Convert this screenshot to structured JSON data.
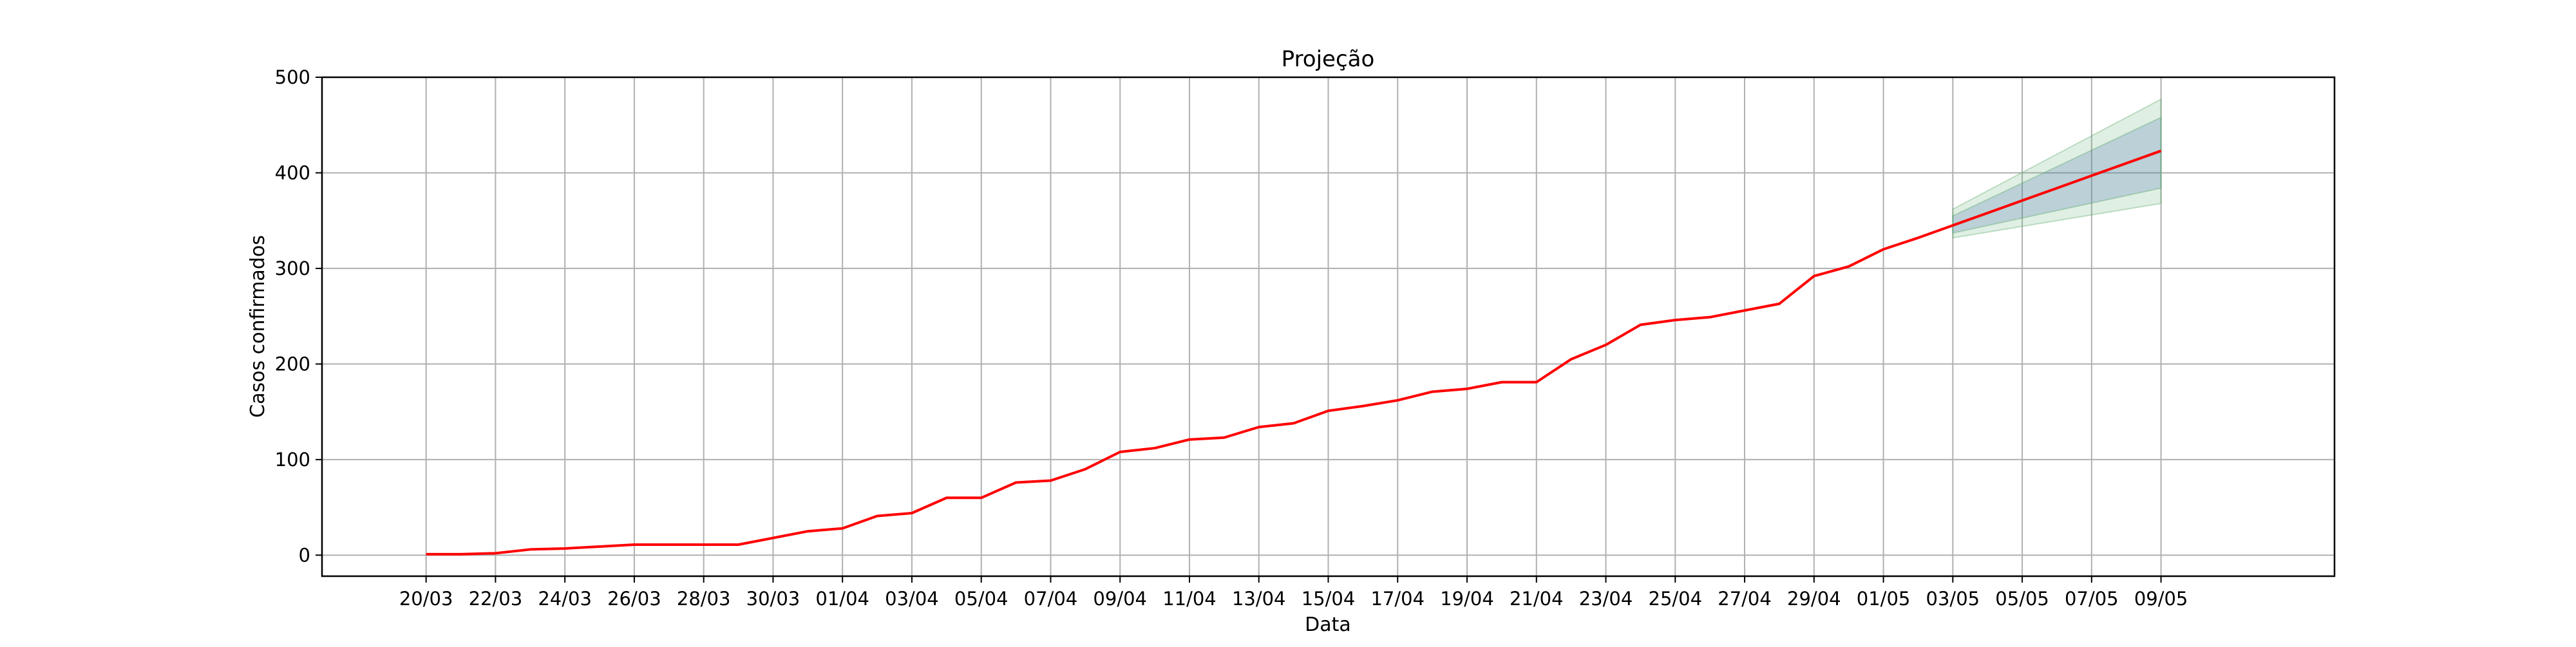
{
  "chart_data": {
    "type": "line",
    "title": "Projeção",
    "xlabel": "Data",
    "ylabel": "Casos confirmados",
    "ylim": [
      -22,
      500
    ],
    "yticks": [
      0,
      100,
      200,
      300,
      400,
      500
    ],
    "xlim": [
      "2020-03-17",
      "2020-05-14"
    ],
    "xticks": [
      "20/03",
      "22/03",
      "24/03",
      "26/03",
      "28/03",
      "30/03",
      "01/04",
      "03/04",
      "05/04",
      "07/04",
      "09/04",
      "11/04",
      "13/04",
      "15/04",
      "17/04",
      "19/04",
      "21/04",
      "23/04",
      "25/04",
      "27/04",
      "29/04",
      "01/05",
      "03/05",
      "05/05",
      "07/05",
      "09/05"
    ],
    "xtick_dates": [
      "2020-03-20",
      "2020-03-22",
      "2020-03-24",
      "2020-03-26",
      "2020-03-28",
      "2020-03-30",
      "2020-04-01",
      "2020-04-03",
      "2020-04-05",
      "2020-04-07",
      "2020-04-09",
      "2020-04-11",
      "2020-04-13",
      "2020-04-15",
      "2020-04-17",
      "2020-04-19",
      "2020-04-21",
      "2020-04-23",
      "2020-04-25",
      "2020-04-27",
      "2020-04-29",
      "2020-05-01",
      "2020-05-03",
      "2020-05-05",
      "2020-05-07",
      "2020-05-09"
    ],
    "grid": true,
    "colors": {
      "line": "#ff0000",
      "band_inner": "#4c72b0",
      "band_outer": "#55a868",
      "grid": "#b0b0b0"
    },
    "series": [
      {
        "x": [
          "2020-03-20",
          "2020-03-21",
          "2020-03-22",
          "2020-03-23",
          "2020-03-24",
          "2020-03-25",
          "2020-03-26",
          "2020-03-27",
          "2020-03-28",
          "2020-03-29",
          "2020-03-30",
          "2020-03-31",
          "2020-04-01",
          "2020-04-02",
          "2020-04-03",
          "2020-04-04",
          "2020-04-05",
          "2020-04-06",
          "2020-04-07",
          "2020-04-08",
          "2020-04-09",
          "2020-04-10",
          "2020-04-11",
          "2020-04-12",
          "2020-04-13",
          "2020-04-14",
          "2020-04-15",
          "2020-04-16",
          "2020-04-17",
          "2020-04-18",
          "2020-04-19",
          "2020-04-20",
          "2020-04-21",
          "2020-04-22",
          "2020-04-23",
          "2020-04-24",
          "2020-04-25",
          "2020-04-26",
          "2020-04-27",
          "2020-04-28",
          "2020-04-29",
          "2020-04-30",
          "2020-05-01",
          "2020-05-02",
          "2020-05-03",
          "2020-05-04",
          "2020-05-05",
          "2020-05-06",
          "2020-05-07",
          "2020-05-08",
          "2020-05-09"
        ],
        "y": [
          1,
          1,
          2,
          6,
          7,
          9,
          11,
          11,
          11,
          11,
          18,
          25,
          28,
          41,
          44,
          60,
          60,
          76,
          78,
          90,
          108,
          112,
          121,
          123,
          134,
          138,
          151,
          156,
          162,
          171,
          174,
          181,
          181,
          205,
          220,
          241,
          246,
          249,
          256,
          263,
          292,
          302,
          320,
          332,
          345,
          358,
          371,
          384,
          397,
          410,
          423
        ]
      }
    ],
    "bands": [
      {
        "x": [
          "2020-05-03",
          "2020-05-09"
        ],
        "lower": [
          332,
          368
        ],
        "upper": [
          362,
          477
        ]
      },
      {
        "x": [
          "2020-05-03",
          "2020-05-09"
        ],
        "lower": [
          337,
          384
        ],
        "upper": [
          355,
          458
        ]
      }
    ]
  }
}
